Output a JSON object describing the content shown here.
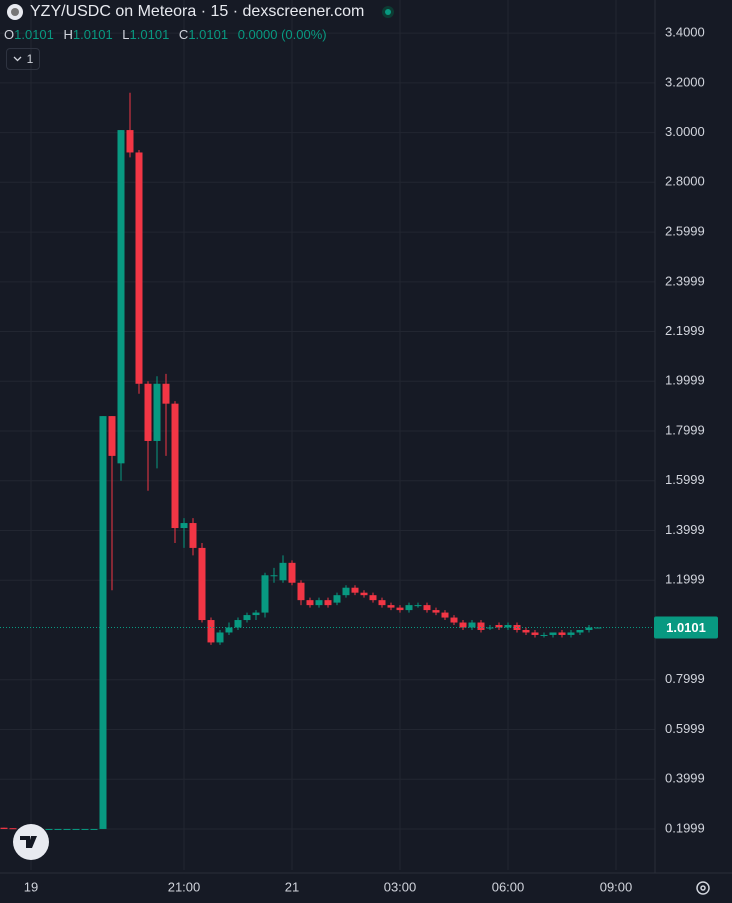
{
  "chart_data": {
    "type": "candlestick",
    "title": "YZY/USDC on Meteora · 15 · dexscreener.com",
    "ohlc_legend": {
      "open_label": "O",
      "open": 1.0101,
      "high_label": "H",
      "high": 1.0101,
      "low_label": "L",
      "low": 1.0101,
      "close_label": "C",
      "close": 1.0101,
      "change": "0.0000 (0.00%)"
    },
    "indicator_count": 1,
    "last_price": 1.0101,
    "up_color": "#089981",
    "down_color": "#f23645",
    "open": [
      0.205,
      0.203,
      0.2,
      0.2,
      0.2,
      0.2,
      0.2,
      0.2,
      0.2,
      0.2,
      0.2,
      0.2,
      1.86,
      1.67,
      3.01,
      2.92,
      1.99,
      1.76,
      1.99,
      1.91,
      1.41,
      1.43,
      1.33,
      1.04,
      0.95,
      0.99,
      1.01,
      1.04,
      1.06,
      1.07,
      1.22,
      1.2,
      1.27,
      1.19,
      1.12,
      1.1,
      1.12,
      1.11,
      1.14,
      1.17,
      1.15,
      1.14,
      1.12,
      1.1,
      1.09,
      1.08,
      1.1,
      1.1,
      1.08,
      1.07,
      1.05,
      1.03,
      1.01,
      1.03,
      1.01,
      1.02,
      1.01,
      1.02,
      1.0,
      0.99,
      0.98,
      0.98,
      0.99,
      0.98,
      0.99,
      1.0,
      1.0101
    ],
    "high": [
      0.205,
      0.203,
      0.2,
      0.2,
      0.2,
      0.2,
      0.2,
      0.2,
      0.2,
      0.2,
      0.2,
      1.86,
      1.86,
      3.01,
      3.16,
      2.93,
      2.0,
      2.02,
      2.03,
      1.92,
      1.45,
      1.45,
      1.35,
      1.05,
      1.0,
      1.03,
      1.05,
      1.07,
      1.08,
      1.23,
      1.25,
      1.3,
      1.28,
      1.2,
      1.13,
      1.13,
      1.13,
      1.15,
      1.18,
      1.18,
      1.16,
      1.15,
      1.13,
      1.11,
      1.1,
      1.11,
      1.11,
      1.11,
      1.09,
      1.08,
      1.06,
      1.04,
      1.04,
      1.04,
      1.02,
      1.03,
      1.03,
      1.03,
      1.01,
      1.0,
      0.99,
      0.99,
      1.0,
      1.0,
      1.0,
      1.02,
      1.0101
    ],
    "low": [
      0.2,
      0.2,
      0.2,
      0.2,
      0.2,
      0.2,
      0.2,
      0.2,
      0.2,
      0.2,
      0.2,
      0.2,
      1.16,
      1.6,
      2.9,
      1.95,
      1.56,
      1.65,
      1.7,
      1.35,
      1.33,
      1.3,
      1.03,
      0.94,
      0.94,
      0.98,
      1.0,
      1.03,
      1.04,
      1.05,
      1.19,
      1.19,
      1.18,
      1.1,
      1.09,
      1.09,
      1.09,
      1.1,
      1.13,
      1.14,
      1.13,
      1.11,
      1.09,
      1.08,
      1.07,
      1.07,
      1.09,
      1.07,
      1.06,
      1.04,
      1.02,
      1.0,
      1.0,
      0.99,
      1.0,
      1.0,
      1.0,
      0.99,
      0.98,
      0.97,
      0.97,
      0.97,
      0.97,
      0.97,
      0.98,
      0.99,
      1.0101
    ],
    "close": [
      0.2,
      0.2,
      0.2,
      0.2,
      0.2,
      0.2,
      0.2,
      0.2,
      0.2,
      0.2,
      0.2,
      1.86,
      1.7,
      3.01,
      2.92,
      1.99,
      1.76,
      1.99,
      1.91,
      1.41,
      1.43,
      1.33,
      1.04,
      0.95,
      0.99,
      1.01,
      1.04,
      1.06,
      1.07,
      1.22,
      1.22,
      1.27,
      1.19,
      1.12,
      1.1,
      1.12,
      1.1,
      1.14,
      1.17,
      1.15,
      1.14,
      1.12,
      1.1,
      1.09,
      1.08,
      1.1,
      1.1,
      1.08,
      1.07,
      1.05,
      1.03,
      1.01,
      1.03,
      1.0,
      1.01,
      1.01,
      1.02,
      1.0,
      0.99,
      0.98,
      0.98,
      0.99,
      0.98,
      0.99,
      1.0,
      1.0101,
      1.0101
    ],
    "ylim": [
      0.035,
      3.533
    ],
    "yticks": [
      {
        "value": 3.4,
        "label": "3.4000"
      },
      {
        "value": 3.2,
        "label": "3.2000"
      },
      {
        "value": 3.0,
        "label": "3.0000"
      },
      {
        "value": 2.8,
        "label": "2.8000"
      },
      2.5999,
      2.3999,
      2.1999,
      1.9999,
      1.7999,
      1.5999,
      1.3999,
      1.1999,
      0.7999,
      0.5999,
      0.3999,
      0.1999
    ],
    "xticks": [
      {
        "value": 3,
        "label": "19"
      },
      {
        "value": 20,
        "label": "21:00"
      },
      {
        "value": 32,
        "label": "21"
      },
      {
        "value": 44,
        "label": "03:00"
      },
      {
        "value": 56,
        "label": "06:00"
      },
      {
        "value": 68,
        "label": "09:00"
      }
    ],
    "grid": true
  }
}
